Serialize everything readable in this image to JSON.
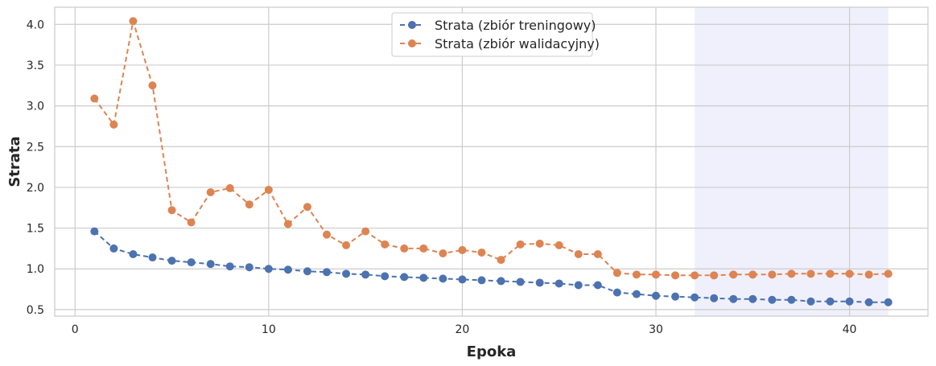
{
  "chart_data": {
    "type": "line",
    "xlabel": "Epoka",
    "ylabel": "Strata",
    "xlim": [
      -1.05,
      44.05
    ],
    "ylim": [
      0.42,
      4.21
    ],
    "xticks": [
      0,
      10,
      20,
      30,
      40
    ],
    "yticks": [
      0.5,
      1.0,
      1.5,
      2.0,
      2.5,
      3.0,
      3.5,
      4.0
    ],
    "xtick_labels": [
      "0",
      "10",
      "20",
      "30",
      "40"
    ],
    "ytick_labels": [
      "0.5",
      "1.0",
      "1.5",
      "2.0",
      "2.5",
      "3.0",
      "3.5",
      "4.0"
    ],
    "grid": true,
    "legend_position": "top-center",
    "highlight_span": [
      32,
      42
    ],
    "highlight_color": "#e6e6fa",
    "x": [
      1,
      2,
      3,
      4,
      5,
      6,
      7,
      8,
      9,
      10,
      11,
      12,
      13,
      14,
      15,
      16,
      17,
      18,
      19,
      20,
      21,
      22,
      23,
      24,
      25,
      26,
      27,
      28,
      29,
      30,
      31,
      32,
      33,
      34,
      35,
      36,
      37,
      38,
      39,
      40,
      41,
      42
    ],
    "series": [
      {
        "name": "Strata (zbiór treningowy)",
        "color": "#4c72b0",
        "values": [
          1.46,
          1.25,
          1.18,
          1.14,
          1.1,
          1.08,
          1.06,
          1.03,
          1.02,
          1.0,
          0.99,
          0.97,
          0.96,
          0.94,
          0.93,
          0.91,
          0.9,
          0.89,
          0.88,
          0.87,
          0.86,
          0.85,
          0.84,
          0.83,
          0.82,
          0.8,
          0.8,
          0.71,
          0.69,
          0.67,
          0.66,
          0.65,
          0.64,
          0.63,
          0.63,
          0.62,
          0.62,
          0.6,
          0.6,
          0.6,
          0.59,
          0.59
        ]
      },
      {
        "name": "Strata (zbiór walidacyjny)",
        "color": "#dd8452",
        "values": [
          3.09,
          2.77,
          4.04,
          3.25,
          1.72,
          1.57,
          1.94,
          1.99,
          1.79,
          1.97,
          1.55,
          1.76,
          1.42,
          1.29,
          1.46,
          1.3,
          1.25,
          1.25,
          1.19,
          1.23,
          1.2,
          1.11,
          1.3,
          1.31,
          1.29,
          1.18,
          1.18,
          0.95,
          0.93,
          0.93,
          0.92,
          0.92,
          0.92,
          0.93,
          0.93,
          0.93,
          0.94,
          0.94,
          0.94,
          0.94,
          0.93,
          0.94
        ]
      }
    ]
  }
}
